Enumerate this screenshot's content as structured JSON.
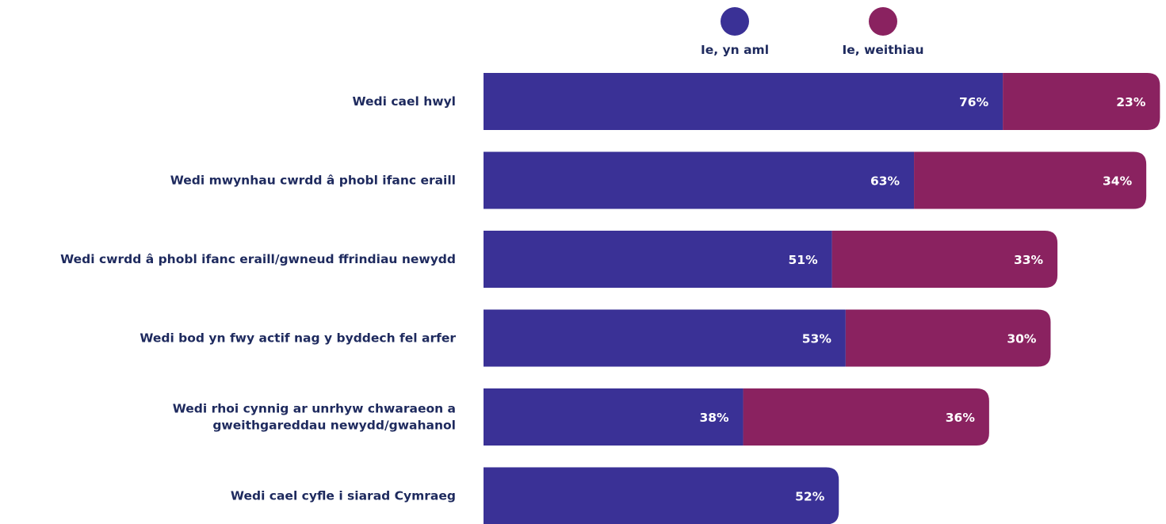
{
  "chart_data": {
    "type": "bar",
    "orientation": "horizontal",
    "stacked": true,
    "categories": [
      [
        "Wedi cael hwyl"
      ],
      [
        "Wedi mwynhau cwrdd â phobl ifanc eraill"
      ],
      [
        "Wedi cwrdd â phobl ifanc eraill/gwneud ffrindiau newydd"
      ],
      [
        "Wedi bod yn fwy actif nag y byddech fel arfer"
      ],
      [
        "Wedi rhoi cynnig ar unrhyw chwaraeon a",
        "gweithgareddau newydd/gwahanol"
      ],
      [
        "Wedi cael cyfle i siarad Cymraeg"
      ]
    ],
    "series": [
      {
        "name": "Ie, yn aml",
        "color": "#3a3196",
        "values": [
          76,
          63,
          51,
          53,
          38,
          52
        ]
      },
      {
        "name": "Ie, weithiau",
        "color": "#8a2260",
        "values": [
          23,
          34,
          33,
          30,
          36,
          null
        ]
      }
    ],
    "value_suffix": "%",
    "legend_position": "top",
    "grid": false
  }
}
